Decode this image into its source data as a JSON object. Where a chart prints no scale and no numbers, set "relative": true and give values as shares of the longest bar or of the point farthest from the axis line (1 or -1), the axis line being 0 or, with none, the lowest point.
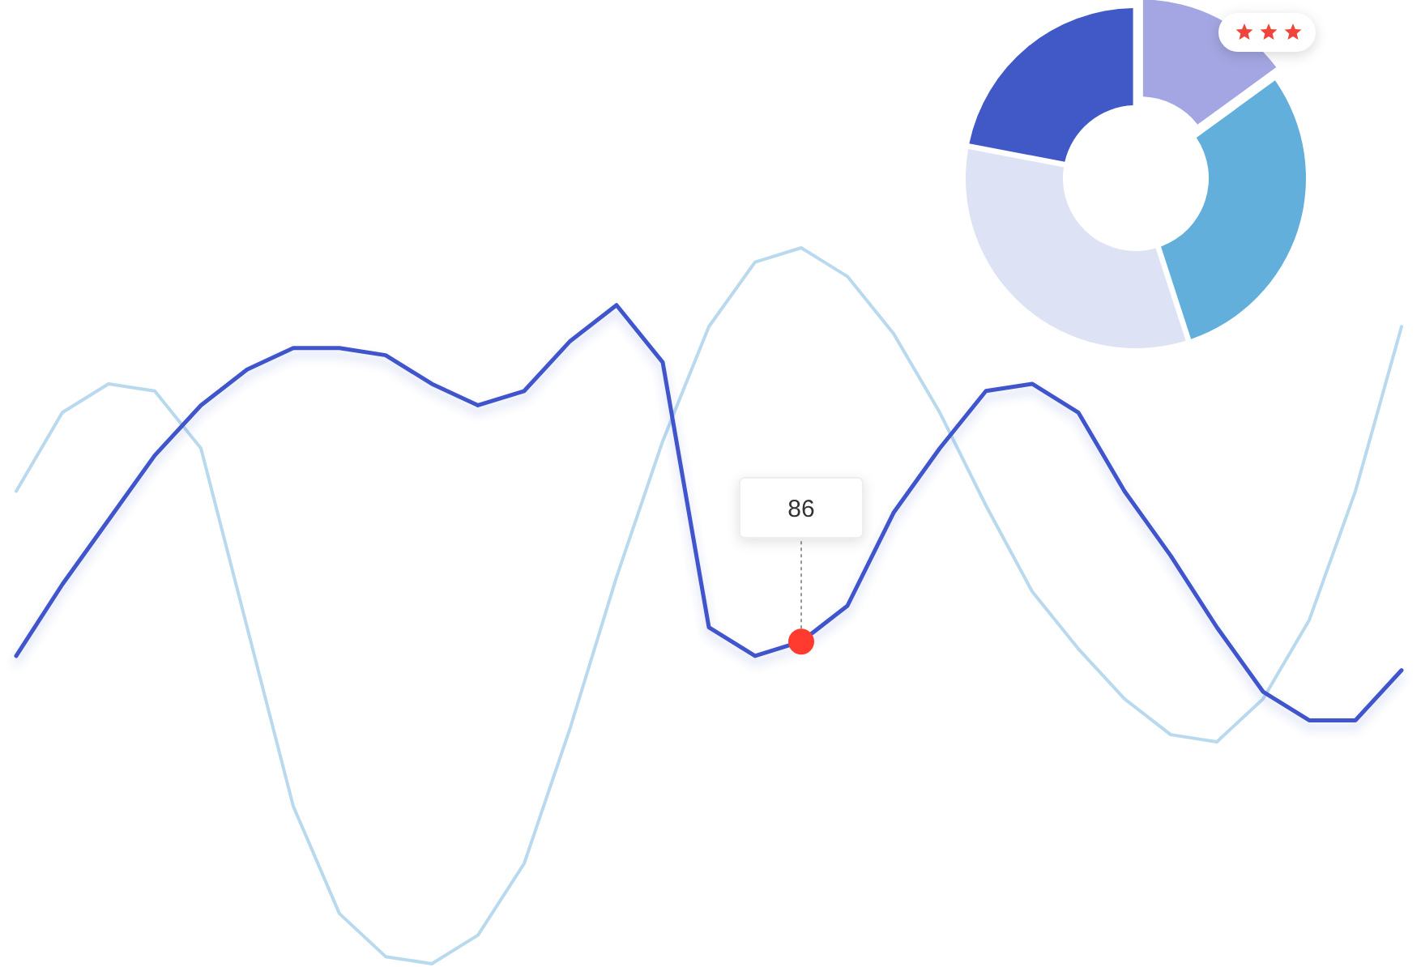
{
  "chart_data": [
    {
      "type": "line",
      "relative": true,
      "categories": [
        null,
        null,
        null,
        null,
        null,
        null,
        null,
        null,
        null,
        null,
        null,
        null,
        null,
        null,
        null,
        null,
        null,
        null,
        null,
        null,
        null,
        null,
        null,
        null,
        null,
        null,
        null,
        null,
        null,
        null,
        null
      ],
      "annotations": [
        "86"
      ],
      "series": [
        {
          "color": "#b9d9ee",
          "values": [
            0.66,
            0.77,
            0.81,
            0.8,
            0.72,
            0.47,
            0.22,
            0.07,
            0.01,
            0,
            0.04,
            0.14,
            0.33,
            0.54,
            0.73,
            0.89,
            0.98,
            1,
            0.96,
            0.88,
            0.77,
            0.64,
            0.52,
            0.44,
            0.37,
            0.32,
            0.31,
            0.37,
            0.48,
            0.66,
            0.89
          ]
        },
        {
          "color": "#3f55cc",
          "values": [
            0.43,
            0.53,
            0.62,
            0.71,
            0.78,
            0.83,
            0.86,
            0.86,
            0.85,
            0.81,
            0.78,
            0.8,
            0.87,
            0.92,
            0.84,
            0.47,
            0.43,
            0.45,
            0.5,
            0.63,
            0.72,
            0.8,
            0.81,
            0.77,
            0.66,
            0.57,
            0.47,
            0.38,
            0.34,
            0.34,
            0.41
          ]
        }
      ]
    },
    {
      "type": "donut",
      "categories": [
        null,
        null,
        null,
        null
      ],
      "values": [
        15,
        30,
        33,
        22
      ],
      "colors": [
        "#a3a6e2",
        "#62afdb",
        "#dde3f4",
        "#4159c6"
      ]
    }
  ]
}
